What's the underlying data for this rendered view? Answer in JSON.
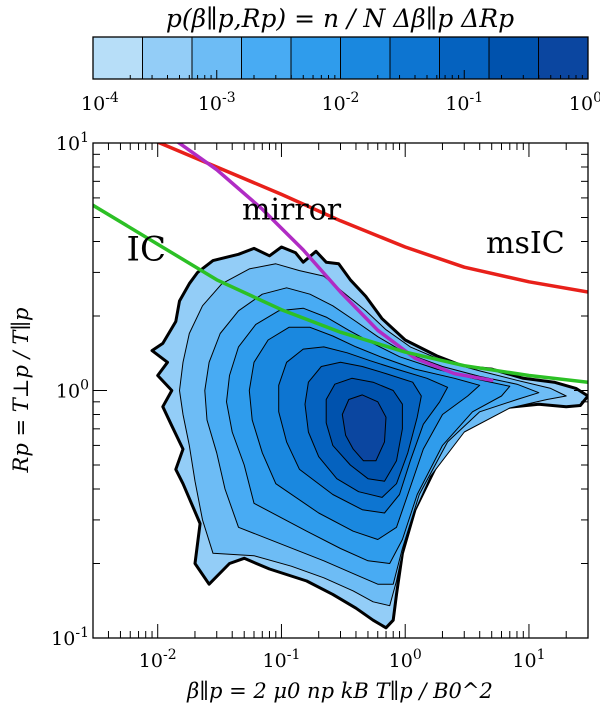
{
  "colorbar": {
    "title": "p(β∥p,Rp) = n / N Δβ∥p ΔRp",
    "colors": [
      "#b7def8",
      "#93cdf7",
      "#6dbcf5",
      "#48abf3",
      "#2f9cec",
      "#1a88df",
      "#0d75d1",
      "#0562bf",
      "#0052ad",
      "#0b46a0"
    ],
    "tick_labels": [
      "10^-4",
      "10^-3",
      "10^-2",
      "10^-1",
      "10^0"
    ]
  },
  "chart_data": {
    "type": "heatmap",
    "subtype": "filled-contour-2d-histogram",
    "xlabel": "β∥p = 2 μ0 np kB T∥p / B0^2",
    "ylabel": "Rp = T⊥p / T∥p",
    "x_scale": "log",
    "y_scale": "log",
    "xlim": [
      0.003,
      30
    ],
    "ylim": [
      0.1,
      10
    ],
    "x_ticks": [
      0.01,
      0.1,
      1,
      10
    ],
    "y_ticks": [
      0.1,
      1,
      10
    ],
    "x_tick_labels": [
      "10^-2",
      "10^-1",
      "10^0",
      "10^1"
    ],
    "y_tick_labels": [
      "10^-1",
      "10^0",
      "10^1"
    ],
    "grid": false,
    "contour_levels": [
      0.0001,
      0.00025,
      0.001,
      0.0025,
      0.01,
      0.025,
      0.1,
      0.25,
      1
    ],
    "density_peak": {
      "beta": 0.55,
      "R": 0.8
    },
    "curves": [
      {
        "name": "msIC",
        "color": "#e8201a",
        "points": [
          [
            0.0095,
            10.2
          ],
          [
            0.03,
            8.0
          ],
          [
            0.1,
            6.2
          ],
          [
            0.3,
            4.85
          ],
          [
            1,
            3.8
          ],
          [
            3,
            3.15
          ],
          [
            10,
            2.75
          ],
          [
            30,
            2.5
          ]
        ]
      },
      {
        "name": "mirror",
        "color": "#b02cc4",
        "points": [
          [
            0.013,
            10.5
          ],
          [
            0.03,
            7.8
          ],
          [
            0.07,
            5.4
          ],
          [
            0.15,
            3.7
          ],
          [
            0.3,
            2.5
          ],
          [
            0.6,
            1.75
          ],
          [
            1.2,
            1.35
          ],
          [
            2.5,
            1.17
          ],
          [
            5,
            1.1
          ]
        ]
      },
      {
        "name": "IC",
        "color": "#2cc025",
        "points": [
          [
            0.003,
            5.6
          ],
          [
            0.01,
            3.9
          ],
          [
            0.03,
            2.8
          ],
          [
            0.1,
            2.12
          ],
          [
            0.3,
            1.72
          ],
          [
            1,
            1.43
          ],
          [
            3,
            1.26
          ],
          [
            10,
            1.15
          ],
          [
            30,
            1.08
          ]
        ]
      }
    ],
    "curve_labels": [
      {
        "text": "msIC",
        "x": 4.5,
        "y": 3.6
      },
      {
        "text": "mirror",
        "x": 0.048,
        "y": 4.9
      },
      {
        "text": "IC",
        "x": 0.0056,
        "y": 3.35
      }
    ]
  }
}
